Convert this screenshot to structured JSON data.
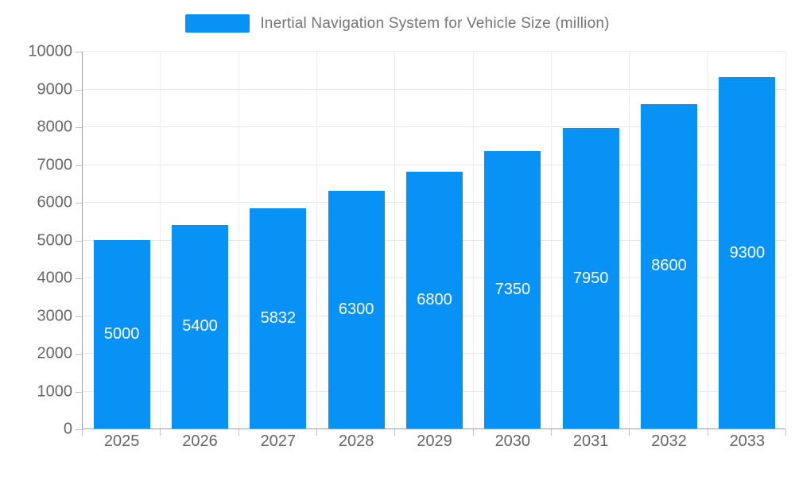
{
  "legend": {
    "label": "Inertial Navigation System for Vehicle Size (million)"
  },
  "colors": {
    "bar": "#0892f5",
    "legend_text": "#757575",
    "axis_text": "#666666",
    "bar_label_text": "#ffffff",
    "grid_line": "#e8e8e8",
    "axis_line": "#9e9e9e"
  },
  "chart_data": {
    "type": "bar",
    "title": "Inertial Navigation System for Vehicle Size (million)",
    "categories": [
      "2025",
      "2026",
      "2027",
      "2028",
      "2029",
      "2030",
      "2031",
      "2032",
      "2033"
    ],
    "values": [
      5000,
      5400,
      5832,
      6300,
      6800,
      7350,
      7950,
      8600,
      9300
    ],
    "xlabel": "",
    "ylabel": "",
    "ylim": [
      0,
      10000
    ],
    "yticks": [
      0,
      1000,
      2000,
      3000,
      4000,
      5000,
      6000,
      7000,
      8000,
      9000,
      10000
    ],
    "grid": true,
    "legend_position": "top",
    "value_labels": "inside-center"
  }
}
